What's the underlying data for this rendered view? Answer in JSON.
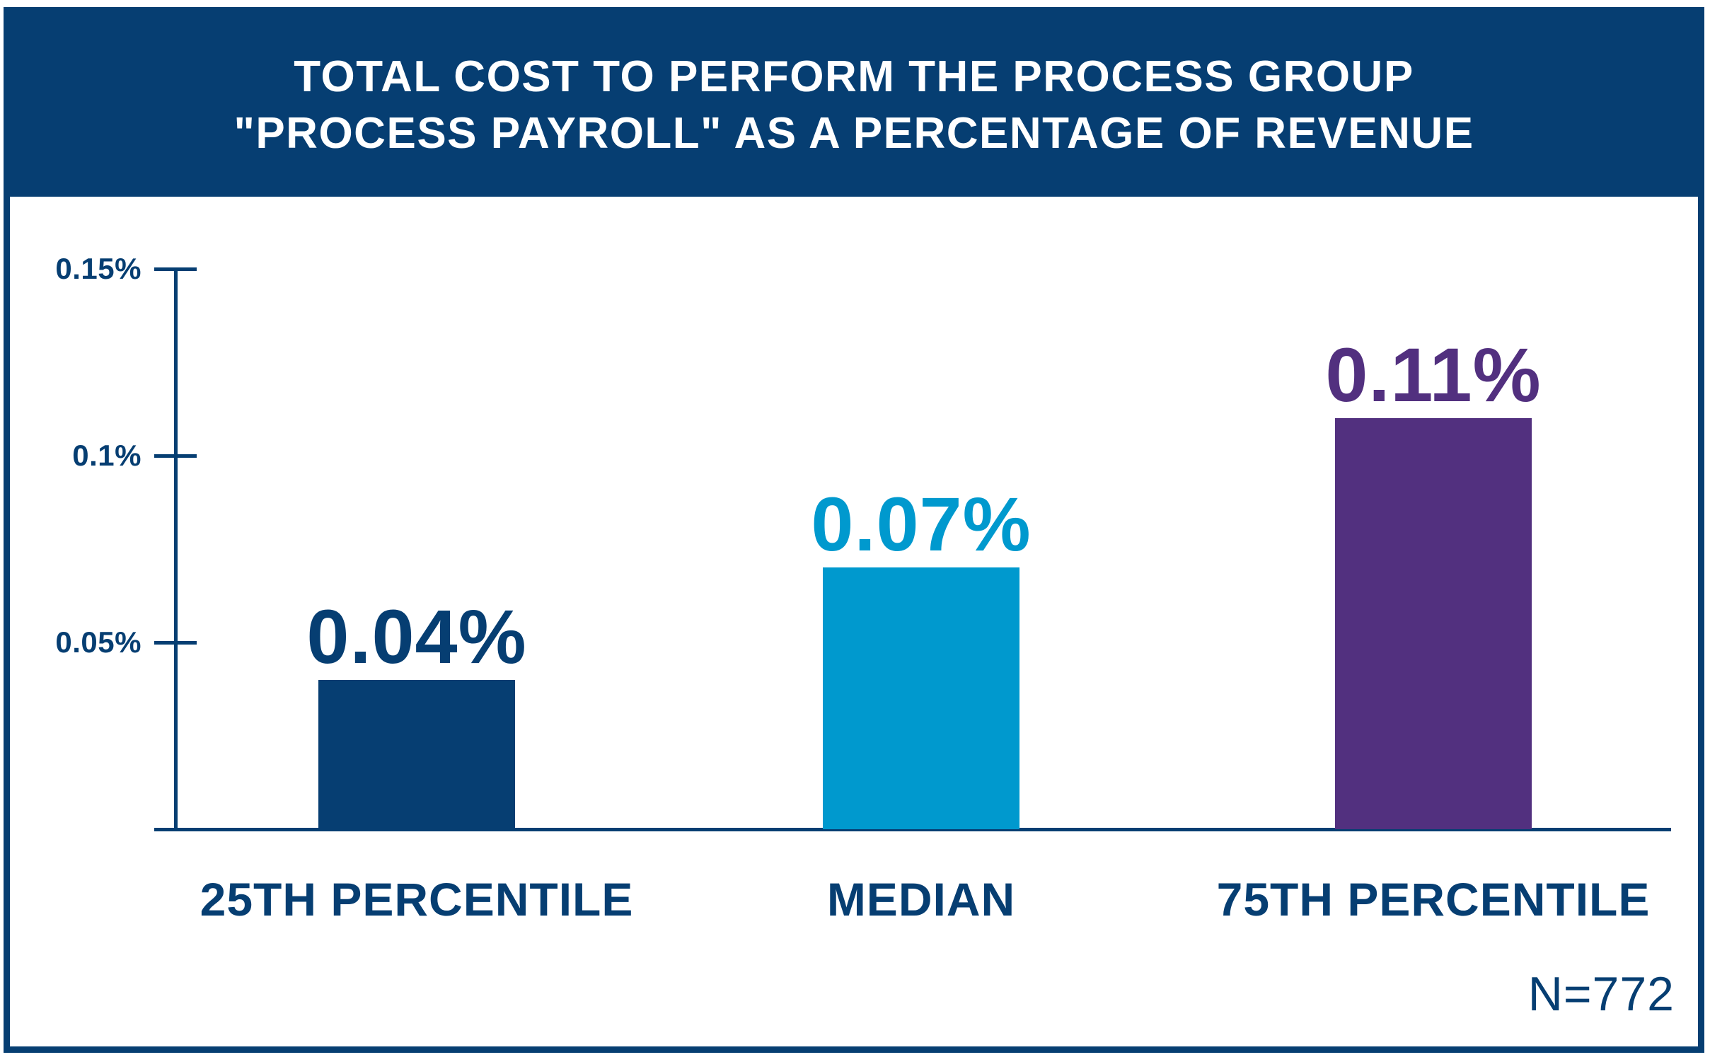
{
  "header": {
    "title_line1": "TOTAL COST TO PERFORM THE PROCESS GROUP",
    "title_line2": "\"PROCESS PAYROLL\" AS A PERCENTAGE OF REVENUE"
  },
  "footer": {
    "sample_size": "N=772"
  },
  "colors": {
    "navy": "#063e72",
    "light_blue": "#0099ce",
    "purple": "#52307f",
    "title_text": "#ffffff",
    "background": "#ffffff"
  },
  "y_axis": {
    "ticks": [
      {
        "label": "0.15%",
        "value": 0.15
      },
      {
        "label": "0.1%",
        "value": 0.1
      },
      {
        "label": "0.05%",
        "value": 0.05
      }
    ]
  },
  "chart_data": {
    "type": "bar",
    "title": "TOTAL COST TO PERFORM THE PROCESS GROUP \"PROCESS PAYROLL\" AS A PERCENTAGE OF REVENUE",
    "categories": [
      "25TH PERCENTILE",
      "MEDIAN",
      "75TH PERCENTILE"
    ],
    "values": [
      0.04,
      0.07,
      0.11
    ],
    "value_labels": [
      "0.04%",
      "0.07%",
      "0.11%"
    ],
    "bar_colors": [
      "#063e72",
      "#0099ce",
      "#52307f"
    ],
    "xlabel": "",
    "ylabel": "",
    "ylim": [
      0,
      0.15
    ],
    "y_tick_labels": [
      "0.05%",
      "0.1%",
      "0.15%"
    ],
    "grid": false,
    "legend": false,
    "annotations": [
      "N=772"
    ]
  }
}
